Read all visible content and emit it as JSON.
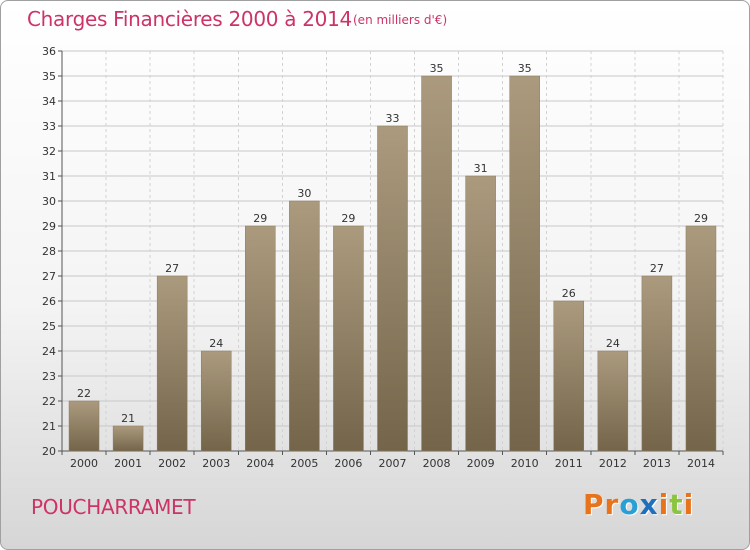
{
  "header": {
    "title": "Charges Financières 2000 à 2014",
    "subtitle": "(en milliers d'€)"
  },
  "footer": {
    "location": "POUCHARRAMET",
    "logo_text": "Proxiti"
  },
  "colors": {
    "title": "#cc3366",
    "bar_light": "#ab9a7e",
    "bar_dark": "#74654a",
    "logo_letters": [
      "#e8731a",
      "#e8731a",
      "#2a9fd6",
      "#1f6fbf",
      "#e8731a",
      "#8bc53f",
      "#e8731a"
    ]
  },
  "chart_data": {
    "type": "bar",
    "categories": [
      "2000",
      "2001",
      "2002",
      "2003",
      "2004",
      "2005",
      "2006",
      "2007",
      "2008",
      "2009",
      "2010",
      "2011",
      "2012",
      "2013",
      "2014"
    ],
    "values": [
      22,
      21,
      27,
      24,
      29,
      30,
      29,
      33,
      35,
      31,
      35,
      26,
      24,
      27,
      29
    ],
    "data_labels": [
      "22",
      "21",
      "27",
      "24",
      "29",
      "30",
      "29",
      "33",
      "35",
      "31",
      "35",
      "26",
      "24",
      "27",
      "29"
    ],
    "y_ticks": [
      "20",
      "21",
      "22",
      "23",
      "24",
      "25",
      "26",
      "27",
      "28",
      "29",
      "30",
      "31",
      "32",
      "33",
      "34",
      "35",
      "36"
    ],
    "ylim": [
      20,
      36
    ],
    "grid": true
  }
}
